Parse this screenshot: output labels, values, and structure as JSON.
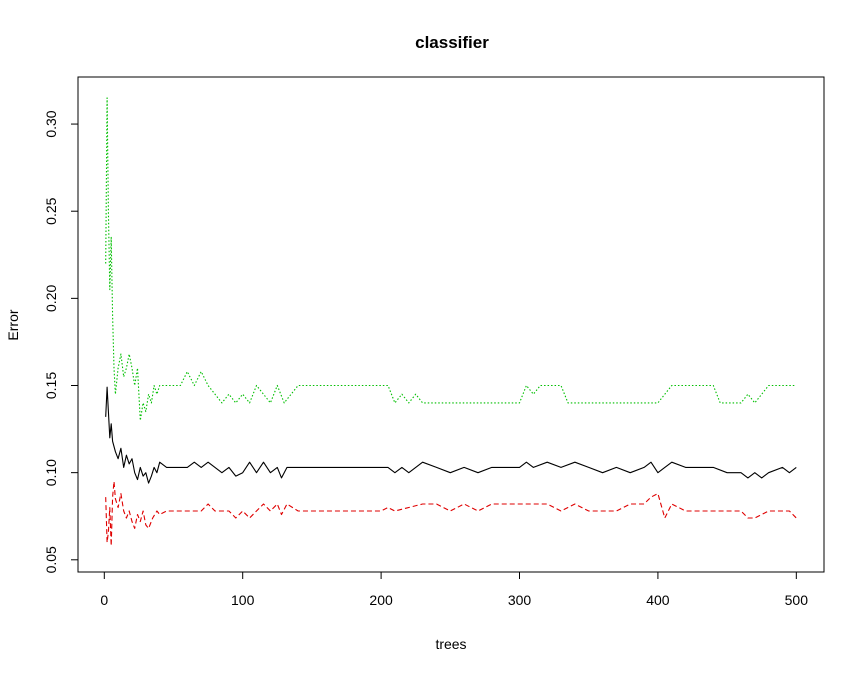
{
  "chart_data": {
    "type": "line",
    "title": "classifier",
    "xlabel": "trees",
    "ylabel": "Error",
    "xlim": [
      1,
      500
    ],
    "ylim": [
      0.05,
      0.32
    ],
    "xticks": [
      0,
      100,
      200,
      300,
      400,
      500
    ],
    "yticks": [
      0.05,
      0.1,
      0.15,
      0.2,
      0.25,
      0.3
    ],
    "ytick_labels": [
      "0.05",
      "0.10",
      "0.15",
      "0.20",
      "0.25",
      "0.30"
    ],
    "grid": false,
    "series": [
      {
        "color": "#000000",
        "dash": "solid",
        "points": [
          [
            1,
            0.132
          ],
          [
            2,
            0.149
          ],
          [
            3,
            0.135
          ],
          [
            4,
            0.12
          ],
          [
            5,
            0.128
          ],
          [
            6,
            0.118
          ],
          [
            8,
            0.112
          ],
          [
            10,
            0.108
          ],
          [
            12,
            0.114
          ],
          [
            14,
            0.103
          ],
          [
            16,
            0.11
          ],
          [
            18,
            0.105
          ],
          [
            20,
            0.108
          ],
          [
            22,
            0.1
          ],
          [
            24,
            0.096
          ],
          [
            26,
            0.103
          ],
          [
            28,
            0.098
          ],
          [
            30,
            0.1
          ],
          [
            32,
            0.094
          ],
          [
            34,
            0.098
          ],
          [
            36,
            0.103
          ],
          [
            38,
            0.1
          ],
          [
            40,
            0.106
          ],
          [
            45,
            0.103
          ],
          [
            50,
            0.103
          ],
          [
            60,
            0.103
          ],
          [
            65,
            0.106
          ],
          [
            70,
            0.103
          ],
          [
            75,
            0.106
          ],
          [
            80,
            0.103
          ],
          [
            85,
            0.1
          ],
          [
            90,
            0.103
          ],
          [
            95,
            0.098
          ],
          [
            100,
            0.1
          ],
          [
            105,
            0.106
          ],
          [
            110,
            0.1
          ],
          [
            115,
            0.106
          ],
          [
            120,
            0.1
          ],
          [
            125,
            0.103
          ],
          [
            128,
            0.097
          ],
          [
            132,
            0.103
          ],
          [
            140,
            0.103
          ],
          [
            160,
            0.103
          ],
          [
            200,
            0.103
          ],
          [
            205,
            0.103
          ],
          [
            210,
            0.1
          ],
          [
            215,
            0.103
          ],
          [
            220,
            0.1
          ],
          [
            225,
            0.103
          ],
          [
            230,
            0.106
          ],
          [
            240,
            0.103
          ],
          [
            250,
            0.1
          ],
          [
            260,
            0.103
          ],
          [
            270,
            0.1
          ],
          [
            280,
            0.103
          ],
          [
            300,
            0.103
          ],
          [
            305,
            0.106
          ],
          [
            310,
            0.103
          ],
          [
            320,
            0.106
          ],
          [
            330,
            0.103
          ],
          [
            340,
            0.106
          ],
          [
            350,
            0.103
          ],
          [
            360,
            0.1
          ],
          [
            370,
            0.103
          ],
          [
            380,
            0.1
          ],
          [
            390,
            0.103
          ],
          [
            395,
            0.106
          ],
          [
            400,
            0.1
          ],
          [
            405,
            0.103
          ],
          [
            410,
            0.106
          ],
          [
            420,
            0.103
          ],
          [
            440,
            0.103
          ],
          [
            450,
            0.1
          ],
          [
            460,
            0.1
          ],
          [
            465,
            0.097
          ],
          [
            470,
            0.1
          ],
          [
            475,
            0.097
          ],
          [
            480,
            0.1
          ],
          [
            490,
            0.103
          ],
          [
            495,
            0.1
          ],
          [
            500,
            0.103
          ]
        ]
      },
      {
        "color": "#df0000",
        "dash": "dashed",
        "points": [
          [
            1,
            0.086
          ],
          [
            2,
            0.06
          ],
          [
            3,
            0.066
          ],
          [
            4,
            0.08
          ],
          [
            5,
            0.058
          ],
          [
            6,
            0.086
          ],
          [
            7,
            0.095
          ],
          [
            8,
            0.085
          ],
          [
            10,
            0.08
          ],
          [
            12,
            0.088
          ],
          [
            14,
            0.078
          ],
          [
            16,
            0.074
          ],
          [
            18,
            0.078
          ],
          [
            20,
            0.072
          ],
          [
            22,
            0.068
          ],
          [
            24,
            0.076
          ],
          [
            26,
            0.072
          ],
          [
            28,
            0.078
          ],
          [
            30,
            0.07
          ],
          [
            32,
            0.068
          ],
          [
            35,
            0.074
          ],
          [
            38,
            0.078
          ],
          [
            40,
            0.076
          ],
          [
            45,
            0.078
          ],
          [
            60,
            0.078
          ],
          [
            70,
            0.078
          ],
          [
            75,
            0.082
          ],
          [
            80,
            0.078
          ],
          [
            90,
            0.078
          ],
          [
            95,
            0.074
          ],
          [
            100,
            0.078
          ],
          [
            105,
            0.074
          ],
          [
            110,
            0.078
          ],
          [
            115,
            0.082
          ],
          [
            120,
            0.078
          ],
          [
            125,
            0.082
          ],
          [
            128,
            0.076
          ],
          [
            132,
            0.082
          ],
          [
            140,
            0.078
          ],
          [
            160,
            0.078
          ],
          [
            200,
            0.078
          ],
          [
            205,
            0.08
          ],
          [
            210,
            0.078
          ],
          [
            230,
            0.082
          ],
          [
            240,
            0.082
          ],
          [
            250,
            0.078
          ],
          [
            260,
            0.082
          ],
          [
            270,
            0.078
          ],
          [
            280,
            0.082
          ],
          [
            300,
            0.082
          ],
          [
            320,
            0.082
          ],
          [
            330,
            0.078
          ],
          [
            340,
            0.082
          ],
          [
            350,
            0.078
          ],
          [
            370,
            0.078
          ],
          [
            380,
            0.082
          ],
          [
            390,
            0.082
          ],
          [
            395,
            0.086
          ],
          [
            400,
            0.088
          ],
          [
            405,
            0.074
          ],
          [
            410,
            0.082
          ],
          [
            420,
            0.078
          ],
          [
            440,
            0.078
          ],
          [
            460,
            0.078
          ],
          [
            465,
            0.074
          ],
          [
            470,
            0.074
          ],
          [
            475,
            0.076
          ],
          [
            480,
            0.078
          ],
          [
            495,
            0.078
          ],
          [
            500,
            0.074
          ]
        ]
      },
      {
        "color": "#00bf00",
        "dash": "dotted",
        "points": [
          [
            1,
            0.22
          ],
          [
            2,
            0.315
          ],
          [
            3,
            0.25
          ],
          [
            4,
            0.205
          ],
          [
            5,
            0.235
          ],
          [
            6,
            0.19
          ],
          [
            7,
            0.16
          ],
          [
            8,
            0.145
          ],
          [
            10,
            0.16
          ],
          [
            12,
            0.168
          ],
          [
            14,
            0.155
          ],
          [
            16,
            0.16
          ],
          [
            18,
            0.168
          ],
          [
            20,
            0.16
          ],
          [
            22,
            0.15
          ],
          [
            24,
            0.16
          ],
          [
            26,
            0.13
          ],
          [
            28,
            0.14
          ],
          [
            30,
            0.135
          ],
          [
            32,
            0.145
          ],
          [
            34,
            0.14
          ],
          [
            36,
            0.15
          ],
          [
            38,
            0.145
          ],
          [
            40,
            0.15
          ],
          [
            45,
            0.15
          ],
          [
            55,
            0.15
          ],
          [
            60,
            0.158
          ],
          [
            65,
            0.15
          ],
          [
            70,
            0.158
          ],
          [
            75,
            0.15
          ],
          [
            80,
            0.145
          ],
          [
            85,
            0.14
          ],
          [
            90,
            0.145
          ],
          [
            95,
            0.14
          ],
          [
            100,
            0.145
          ],
          [
            105,
            0.14
          ],
          [
            110,
            0.15
          ],
          [
            115,
            0.145
          ],
          [
            120,
            0.14
          ],
          [
            125,
            0.15
          ],
          [
            130,
            0.14
          ],
          [
            135,
            0.145
          ],
          [
            140,
            0.15
          ],
          [
            160,
            0.15
          ],
          [
            200,
            0.15
          ],
          [
            205,
            0.15
          ],
          [
            210,
            0.14
          ],
          [
            215,
            0.145
          ],
          [
            220,
            0.14
          ],
          [
            225,
            0.145
          ],
          [
            230,
            0.14
          ],
          [
            240,
            0.14
          ],
          [
            250,
            0.14
          ],
          [
            270,
            0.14
          ],
          [
            300,
            0.14
          ],
          [
            305,
            0.15
          ],
          [
            310,
            0.145
          ],
          [
            315,
            0.15
          ],
          [
            320,
            0.15
          ],
          [
            330,
            0.15
          ],
          [
            335,
            0.14
          ],
          [
            350,
            0.14
          ],
          [
            380,
            0.14
          ],
          [
            400,
            0.14
          ],
          [
            405,
            0.145
          ],
          [
            410,
            0.15
          ],
          [
            420,
            0.15
          ],
          [
            440,
            0.15
          ],
          [
            445,
            0.14
          ],
          [
            460,
            0.14
          ],
          [
            465,
            0.145
          ],
          [
            470,
            0.14
          ],
          [
            475,
            0.145
          ],
          [
            480,
            0.15
          ],
          [
            500,
            0.15
          ]
        ]
      }
    ]
  }
}
